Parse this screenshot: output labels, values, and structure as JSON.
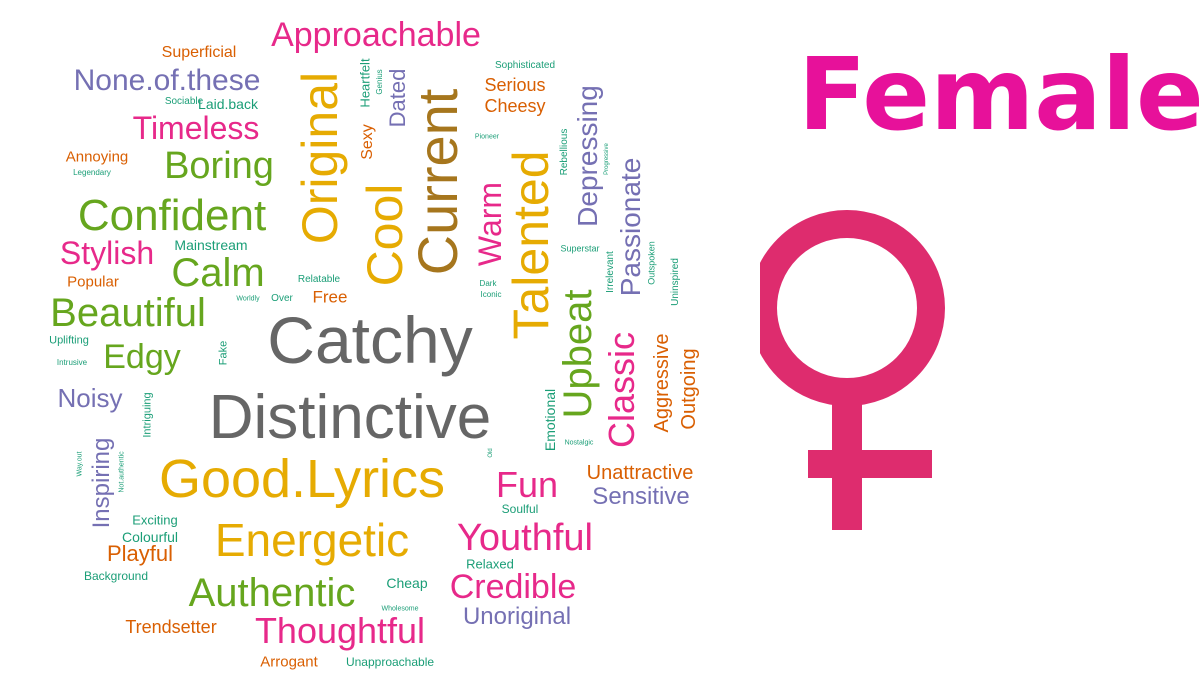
{
  "title": "Female",
  "colors": {
    "title": "#E7119A",
    "symbol": "#DE2C6E",
    "palette": {
      "gray": "#666666",
      "pink": "#E7298A",
      "green": "#66A61E",
      "orange": "#D95F02",
      "purple": "#7570B3",
      "gold": "#E6AB02",
      "brown": "#A6761D",
      "teal": "#1B9E77"
    }
  },
  "symbol_icon": "female-symbol-icon",
  "words": [
    "Catchy",
    "Distinctive",
    "Good.Lyrics",
    "Current",
    "Talented",
    "Original",
    "Cool",
    "Energetic",
    "Confident",
    "Upbeat",
    "Beautiful",
    "Authentic",
    "Thoughtful",
    "Youthful",
    "Boring",
    "Calm",
    "Classic",
    "Credible",
    "Approachable",
    "None.of.these",
    "Timeless",
    "Stylish",
    "Edgy",
    "Fun",
    "Warm",
    "Passionate",
    "Depressing",
    "Sensitive",
    "Unoriginal",
    "Inspiring",
    "Aggressive",
    "Noisy",
    "Outgoing",
    "Playful",
    "Unattractive",
    "Trendsetter",
    "Dated",
    "Serious",
    "Cheesy",
    "Emotional",
    "Sexy",
    "Superficial",
    "Annoying",
    "Popular",
    "Free",
    "Mainstream",
    "Arrogant",
    "Heartfelt",
    "Colourful",
    "Laid.back",
    "Unapproachable",
    "Exciting",
    "Background",
    "Uplifting",
    "Relaxed",
    "Cheap",
    "Soulful",
    "Intriguing",
    "Fake",
    "Sophisticated",
    "Sociable",
    "Relatable",
    "Over",
    "Irrelevant",
    "Rebellious",
    "Uninspired",
    "Outspoken",
    "Superstar",
    "Dark",
    "Iconic",
    "Legendary",
    "Intrusive",
    "Genius",
    "Pioneer",
    "Progressive",
    "Worldly",
    "Nostalgic",
    "Wholesome",
    "Way.out",
    "Not.authentic",
    "Old"
  ]
}
